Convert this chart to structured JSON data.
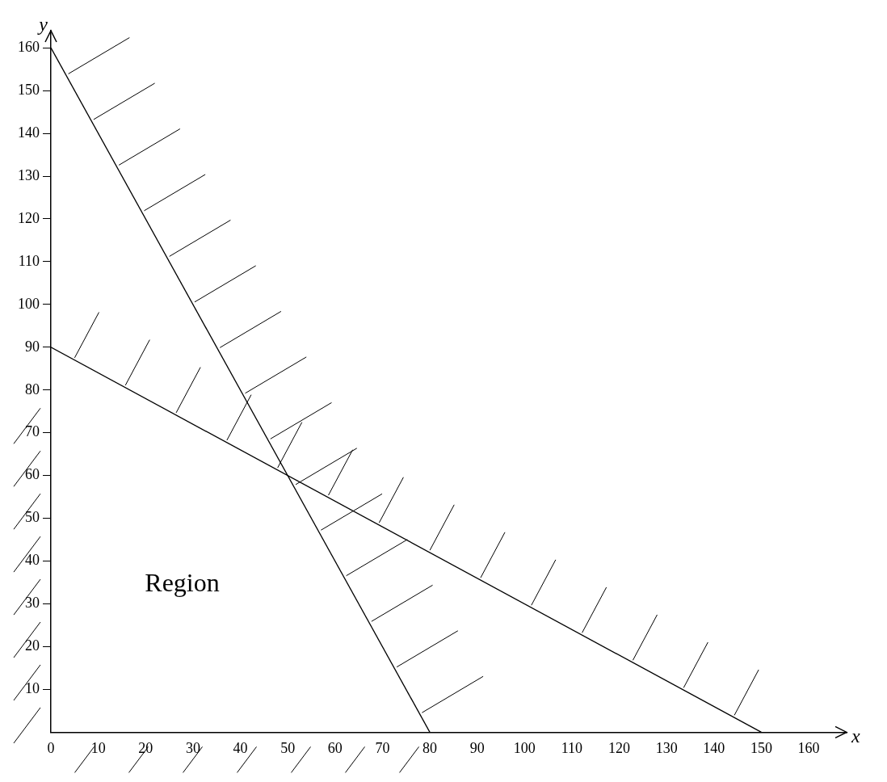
{
  "chart_data": {
    "type": "line",
    "xlabel": "x",
    "ylabel": "y",
    "series": [
      {
        "color": "#000000",
        "x": [
          0,
          80
        ],
        "values": [
          160,
          0
        ]
      },
      {
        "color": "#000000",
        "x": [
          0,
          150
        ],
        "values": [
          90,
          0
        ]
      }
    ],
    "xlim": [
      0,
      168
    ],
    "ylim": [
      0,
      164
    ],
    "xticks": [
      0,
      10,
      20,
      30,
      40,
      50,
      60,
      70,
      80,
      90,
      100,
      110,
      120,
      130,
      140,
      150,
      160
    ],
    "yticks": [
      10,
      20,
      30,
      40,
      50,
      60,
      70,
      80,
      90,
      100,
      110,
      120,
      130,
      140,
      150,
      160
    ],
    "annotations": [
      "Region"
    ],
    "grid": false,
    "legend": false,
    "marker": "none",
    "line_style": "solid"
  }
}
